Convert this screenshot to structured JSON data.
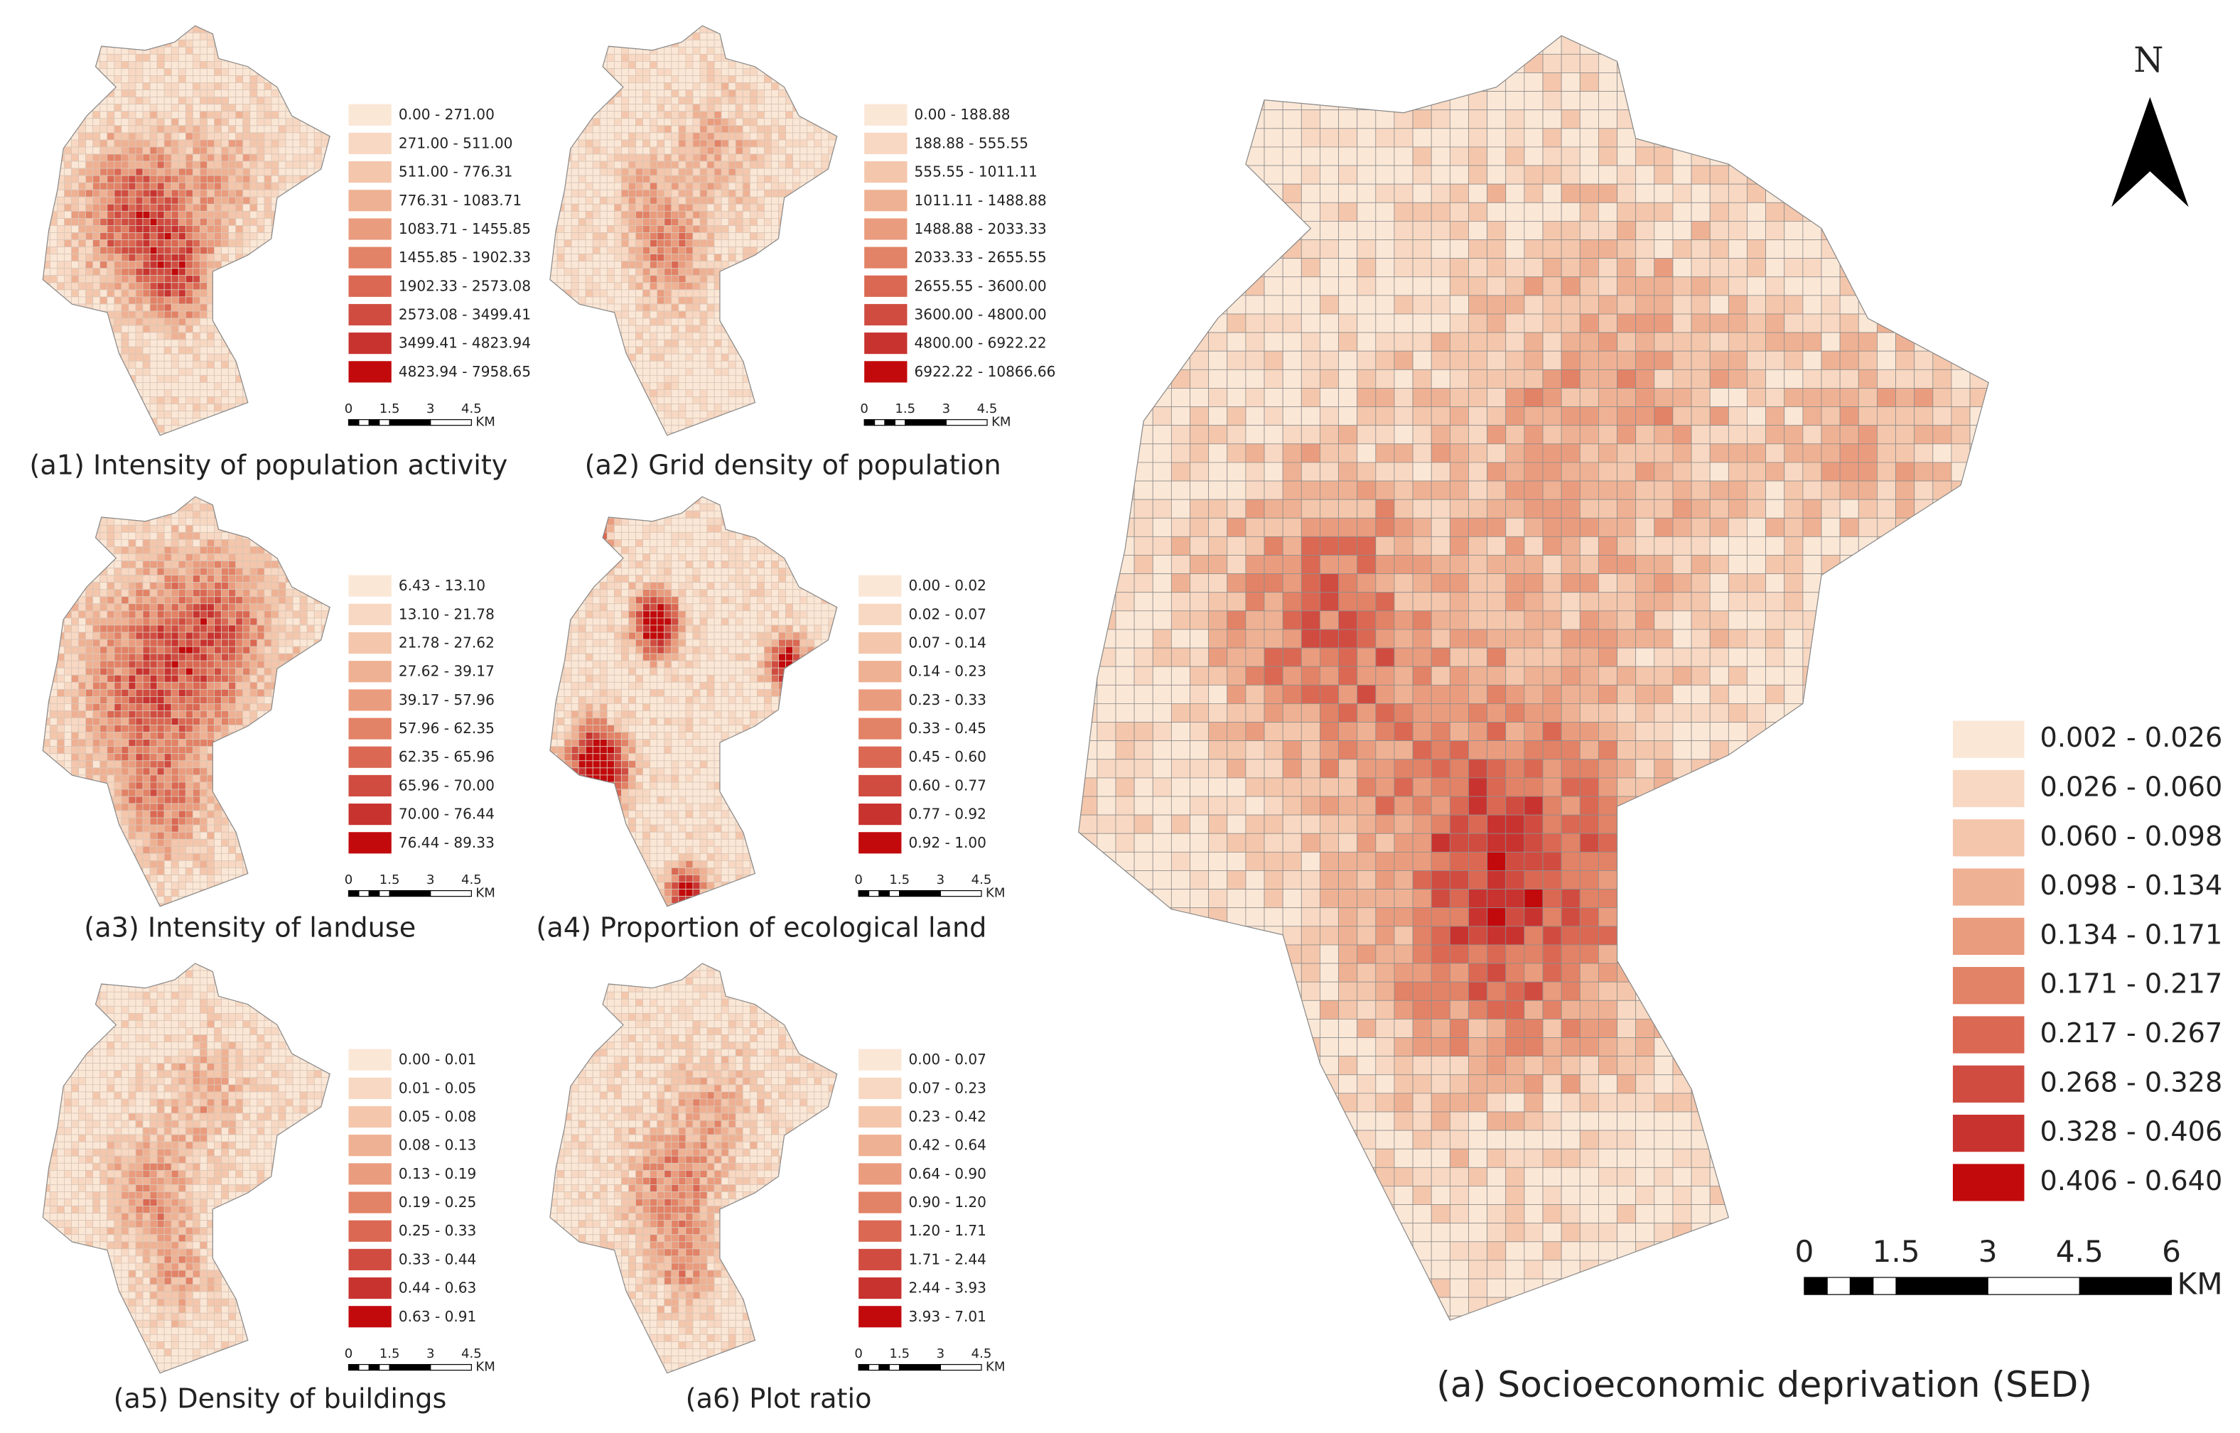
{
  "panels": [
    {
      "title": "(a1) Intensity of population activity",
      "legend": [
        "0.00 - 271.00",
        "271.00 - 511.00",
        "511.00 - 776.31",
        "776.31 - 1083.71",
        "1083.71 - 1455.85",
        "1455.85 - 1902.33",
        "1902.33 - 2573.08",
        "2573.08 - 3499.41",
        "3499.41 - 4823.94",
        "4823.94 - 7958.65"
      ],
      "scale": [
        "0",
        "1.5",
        "3",
        "4.5"
      ],
      "scale_unit": "KM"
    },
    {
      "title": "(a2) Grid density of population",
      "legend": [
        "0.00 - 188.88",
        "188.88 - 555.55",
        "555.55 - 1011.11",
        "1011.11 - 1488.88",
        "1488.88 - 2033.33",
        "2033.33 - 2655.55",
        "2655.55 - 3600.00",
        "3600.00 - 4800.00",
        "4800.00 - 6922.22",
        "6922.22 - 10866.66"
      ],
      "scale": [
        "0",
        "1.5",
        "3",
        "4.5"
      ],
      "scale_unit": "KM"
    },
    {
      "title": "(a3) Intensity of landuse",
      "legend": [
        "6.43 - 13.10",
        "13.10 - 21.78",
        "21.78 - 27.62",
        "27.62 - 39.17",
        "39.17 - 57.96",
        "57.96 - 62.35",
        "62.35 - 65.96",
        "65.96 - 70.00",
        "70.00 - 76.44",
        "76.44 - 89.33"
      ],
      "scale": [
        "0",
        "1.5",
        "3",
        "4.5"
      ],
      "scale_unit": "KM"
    },
    {
      "title": "(a4) Proportion of ecological land",
      "legend": [
        "0.00 - 0.02",
        "0.02 - 0.07",
        "0.07 - 0.14",
        "0.14 - 0.23",
        "0.23 - 0.33",
        "0.33 - 0.45",
        "0.45 - 0.60",
        "0.60 - 0.77",
        "0.77 - 0.92",
        "0.92 - 1.00"
      ],
      "scale": [
        "0",
        "1.5",
        "3",
        "4.5"
      ],
      "scale_unit": "KM"
    },
    {
      "title": "(a5) Density of buildings",
      "legend": [
        "0.00 - 0.01",
        "0.01 - 0.05",
        "0.05 - 0.08",
        "0.08 - 0.13",
        "0.13 - 0.19",
        "0.19 - 0.25",
        "0.25 - 0.33",
        "0.33 - 0.44",
        "0.44 - 0.63",
        "0.63 - 0.91"
      ],
      "scale": [
        "0",
        "1.5",
        "3",
        "4.5"
      ],
      "scale_unit": "KM"
    },
    {
      "title": "(a6) Plot ratio",
      "legend": [
        "0.00 - 0.07",
        "0.07 - 0.23",
        "0.23 - 0.42",
        "0.42 - 0.64",
        "0.64 - 0.90",
        "0.90 - 1.20",
        "1.20 - 1.71",
        "1.71 - 2.44",
        "2.44 - 3.93",
        "3.93 - 7.01"
      ],
      "scale": [
        "0",
        "1.5",
        "3",
        "4.5"
      ],
      "scale_unit": "KM"
    }
  ],
  "main": {
    "title": "(a)  Socioeconomic deprivation  (SED)",
    "legend": [
      "0.002 - 0.026",
      "0.026 - 0.060",
      "0.060 - 0.098",
      "0.098 - 0.134",
      "0.134 - 0.171",
      "0.171 - 0.217",
      "0.217 - 0.267",
      "0.268 - 0.328",
      "0.328 - 0.406",
      "0.406 - 0.640"
    ],
    "scale": [
      "0",
      "1.5",
      "3",
      "4.5",
      "6"
    ],
    "scale_unit": "KM",
    "north": "N"
  },
  "legend_colors": [
    "#fbe7d6",
    "#f8d8c2",
    "#f4c6ab",
    "#efb193",
    "#ea9c7e",
    "#e28266",
    "#da6853",
    "#d04c41",
    "#c83330",
    "#c20a0c"
  ]
}
